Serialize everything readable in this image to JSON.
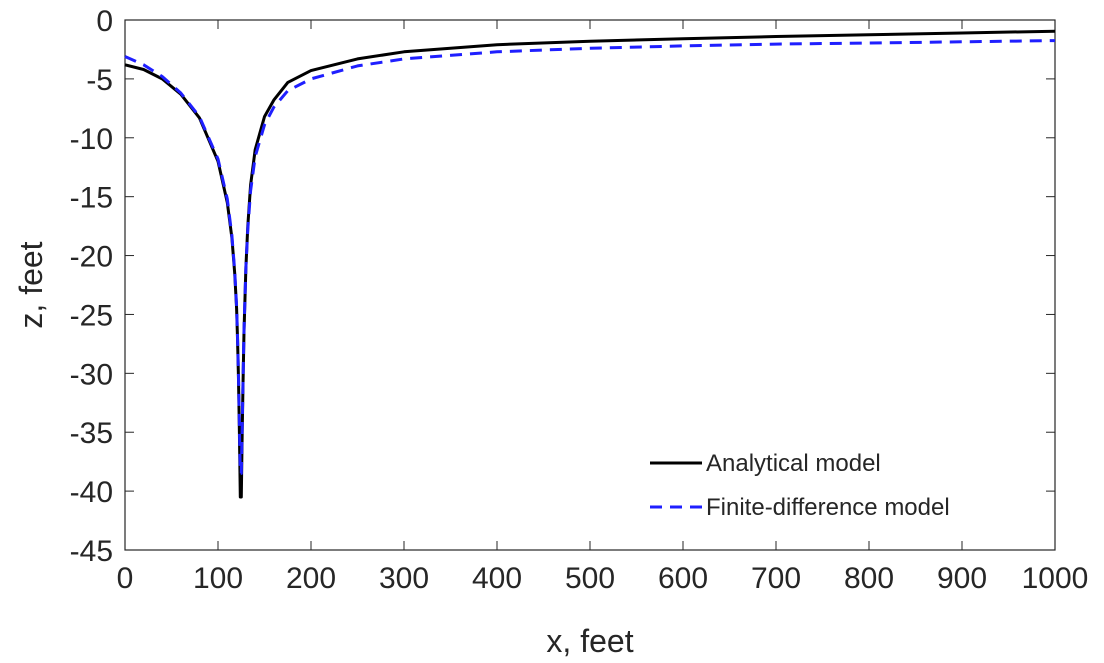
{
  "chart_data": {
    "type": "line",
    "title": "",
    "xlabel": "x, feet",
    "ylabel": "z, feet",
    "xlim": [
      0,
      1000
    ],
    "ylim": [
      -45,
      0
    ],
    "grid": false,
    "legend_position": "bottom-right",
    "x_ticks": [
      "0",
      "100",
      "200",
      "300",
      "400",
      "500",
      "600",
      "700",
      "800",
      "900",
      "1000"
    ],
    "y_ticks": [
      "0",
      "-5",
      "-10",
      "-15",
      "-20",
      "-25",
      "-30",
      "-35",
      "-40",
      "-45"
    ],
    "series": [
      {
        "name": "Analytical model",
        "color": "#000000",
        "line_style": "solid",
        "x": [
          0,
          20,
          40,
          60,
          80,
          100,
          110,
          115,
          118,
          120,
          121,
          122,
          123,
          124,
          125,
          126,
          127,
          128,
          130,
          132,
          135,
          140,
          150,
          160,
          175,
          200,
          250,
          300,
          400,
          500,
          600,
          700,
          800,
          900,
          1000
        ],
        "y": [
          -3.8,
          -4.2,
          -5.0,
          -6.3,
          -8.3,
          -12.0,
          -15.5,
          -18.5,
          -21.5,
          -24.5,
          -27.0,
          -30.5,
          -35.0,
          -40.5,
          -40.5,
          -35.0,
          -30.5,
          -26.5,
          -21.0,
          -17.5,
          -14.0,
          -11.0,
          -8.2,
          -6.8,
          -5.3,
          -4.3,
          -3.3,
          -2.7,
          -2.1,
          -1.8,
          -1.6,
          -1.4,
          -1.25,
          -1.1,
          -0.95
        ]
      },
      {
        "name": "Finite-difference model",
        "color": "#1f1fff",
        "line_style": "dashed",
        "x": [
          0,
          20,
          40,
          60,
          80,
          100,
          110,
          115,
          118,
          120,
          121,
          122,
          123,
          124,
          125,
          126,
          127,
          128,
          130,
          132,
          135,
          140,
          150,
          160,
          175,
          200,
          250,
          300,
          400,
          500,
          600,
          700,
          800,
          900,
          1000
        ],
        "y": [
          -3.1,
          -3.8,
          -4.8,
          -6.2,
          -8.2,
          -11.8,
          -15.2,
          -18.3,
          -21.3,
          -24.3,
          -26.8,
          -30.2,
          -34.5,
          -38.5,
          -38.5,
          -34.5,
          -30.2,
          -26.3,
          -21.0,
          -17.8,
          -14.5,
          -11.6,
          -8.9,
          -7.4,
          -6.0,
          -5.0,
          -3.9,
          -3.3,
          -2.7,
          -2.4,
          -2.2,
          -2.05,
          -1.95,
          -1.85,
          -1.75
        ]
      }
    ]
  }
}
